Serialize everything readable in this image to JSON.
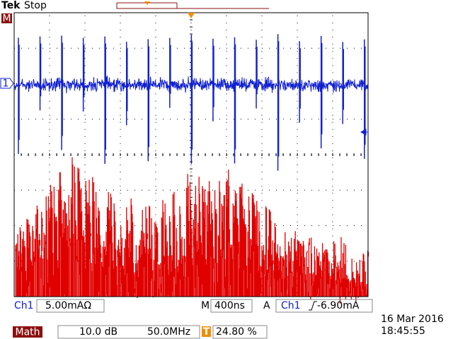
{
  "header": {
    "brand": "Tek",
    "status": "Stop"
  },
  "markers": {
    "math": "M",
    "channel": "1"
  },
  "status_bar": {
    "ch1": {
      "label": "Ch1",
      "scale": "5.00mAΩ"
    },
    "timebase": {
      "label": "M",
      "value": "400ns"
    },
    "trigger": {
      "mode": "A",
      "source": "Ch1",
      "level": "-6.90mA"
    }
  },
  "math_bar": {
    "label": "Math",
    "scale": "10.0 dB",
    "center": "50.0MHz",
    "trigger_icon": "T",
    "trigger_position": "24.80 %"
  },
  "datetime": {
    "date": "16 Mar 2016",
    "time": "18:45:55"
  }
}
